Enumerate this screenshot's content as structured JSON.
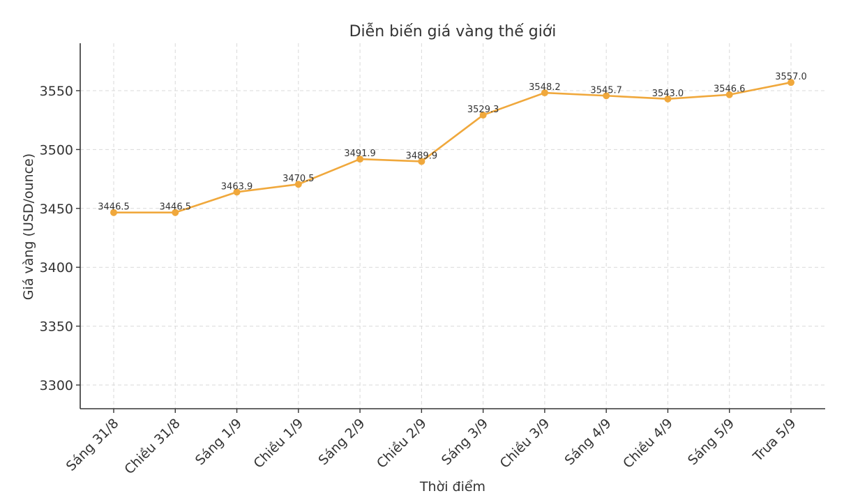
{
  "chart_data": {
    "type": "line",
    "title": "Diễn biến giá vàng thế giới",
    "xlabel": "Thời điểm",
    "ylabel": "Giá vàng (USD/ounce)",
    "categories": [
      "Sáng 31/8",
      "Chiều 31/8",
      "Sáng 1/9",
      "Chiều 1/9",
      "Sáng 2/9",
      "Chiều 2/9",
      "Sáng 3/9",
      "Chiều 3/9",
      "Sáng 4/9",
      "Chiều 4/9",
      "Sáng 5/9",
      "Trưa 5/9"
    ],
    "series": [
      {
        "values": [
          3446.5,
          3446.5,
          3463.9,
          3470.5,
          3491.9,
          3489.9,
          3529.3,
          3548.2,
          3545.7,
          3543.0,
          3546.6,
          3557.0
        ],
        "labels": [
          "3446.5",
          "3446.5",
          "3463.9",
          "3470.5",
          "3491.9",
          "3489.9",
          "3529.3",
          "3548.2",
          "3545.7",
          "3543.0",
          "3546.6",
          "3557.0"
        ],
        "color": "#f0a83c"
      }
    ],
    "yticks": [
      "3300",
      "3350",
      "3400",
      "3450",
      "3500",
      "3550"
    ],
    "ylim": [
      3280,
      3590
    ],
    "grid": true,
    "legend": "none"
  }
}
